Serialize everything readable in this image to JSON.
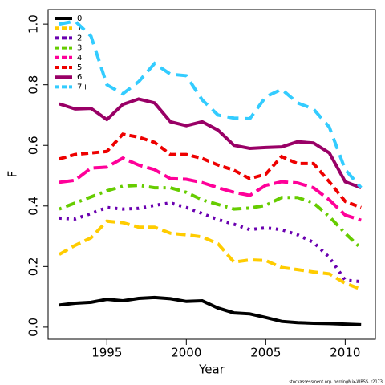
{
  "chart_data": {
    "type": "line",
    "x_label": "Year",
    "y_label": "F",
    "footnote": "stockassessment.org, herringMix-WBSS, r2173",
    "x": [
      1992,
      1993,
      1994,
      1995,
      1996,
      1997,
      1998,
      1999,
      2000,
      2001,
      2002,
      2003,
      2004,
      2005,
      2006,
      2007,
      2008,
      2009,
      2010,
      2011
    ],
    "xlim": [
      1991.3,
      2011.9
    ],
    "xticks": [
      1995,
      2000,
      2005,
      2010
    ],
    "ylim": [
      -0.04,
      1.048
    ],
    "yticks": [
      {
        "value": 0,
        "label": "0.0"
      },
      {
        "value": 0.2,
        "label": "0.2"
      },
      {
        "value": 0.4,
        "label": "0.4"
      },
      {
        "value": 0.6,
        "label": "0.6"
      },
      {
        "value": 0.8,
        "label": "0.8"
      },
      {
        "value": 1,
        "label": "1.0"
      }
    ],
    "legend": "upper left",
    "series": [
      {
        "name": "0",
        "color": "#000000",
        "values": [
          0.073,
          0.079,
          0.082,
          0.092,
          0.087,
          0.095,
          0.098,
          0.094,
          0.085,
          0.087,
          0.063,
          0.047,
          0.044,
          0.032,
          0.019,
          0.015,
          0.013,
          0.012,
          0.01,
          0.008
        ]
      },
      {
        "name": "1",
        "color": "#ffcc00",
        "values": [
          0.24,
          0.27,
          0.295,
          0.35,
          0.345,
          0.33,
          0.33,
          0.31,
          0.305,
          0.298,
          0.275,
          0.215,
          0.222,
          0.22,
          0.197,
          0.19,
          0.182,
          0.176,
          0.145,
          0.125
        ]
      },
      {
        "name": "2",
        "color": "#6a00b0",
        "values": [
          0.36,
          0.357,
          0.375,
          0.395,
          0.39,
          0.392,
          0.402,
          0.41,
          0.395,
          0.375,
          0.355,
          0.34,
          0.322,
          0.328,
          0.322,
          0.305,
          0.28,
          0.23,
          0.155,
          0.15
        ]
      },
      {
        "name": "3",
        "color": "#66cc00",
        "values": [
          0.39,
          0.41,
          0.43,
          0.45,
          0.465,
          0.468,
          0.46,
          0.46,
          0.445,
          0.42,
          0.405,
          0.39,
          0.393,
          0.402,
          0.428,
          0.428,
          0.41,
          0.365,
          0.31,
          0.26
        ]
      },
      {
        "name": "4",
        "color": "#ff0099",
        "values": [
          0.478,
          0.485,
          0.525,
          0.528,
          0.558,
          0.535,
          0.52,
          0.49,
          0.488,
          0.477,
          0.46,
          0.445,
          0.435,
          0.468,
          0.48,
          0.476,
          0.46,
          0.42,
          0.37,
          0.353
        ]
      },
      {
        "name": "5",
        "color": "#ee0000",
        "values": [
          0.555,
          0.57,
          0.575,
          0.58,
          0.637,
          0.627,
          0.61,
          0.57,
          0.57,
          0.557,
          0.535,
          0.518,
          0.49,
          0.505,
          0.563,
          0.54,
          0.54,
          0.48,
          0.415,
          0.395
        ]
      },
      {
        "name": "6",
        "color": "#990066",
        "values": [
          0.737,
          0.72,
          0.722,
          0.685,
          0.735,
          0.753,
          0.74,
          0.678,
          0.665,
          0.678,
          0.65,
          0.6,
          0.59,
          0.593,
          0.595,
          0.612,
          0.608,
          0.575,
          0.48,
          0.46
        ]
      },
      {
        "name": "7+",
        "color": "#33ccff",
        "values": [
          1.0,
          1.01,
          0.96,
          0.8,
          0.77,
          0.81,
          0.87,
          0.835,
          0.83,
          0.75,
          0.7,
          0.69,
          0.688,
          0.76,
          0.785,
          0.74,
          0.72,
          0.66,
          0.52,
          0.46
        ]
      }
    ]
  }
}
